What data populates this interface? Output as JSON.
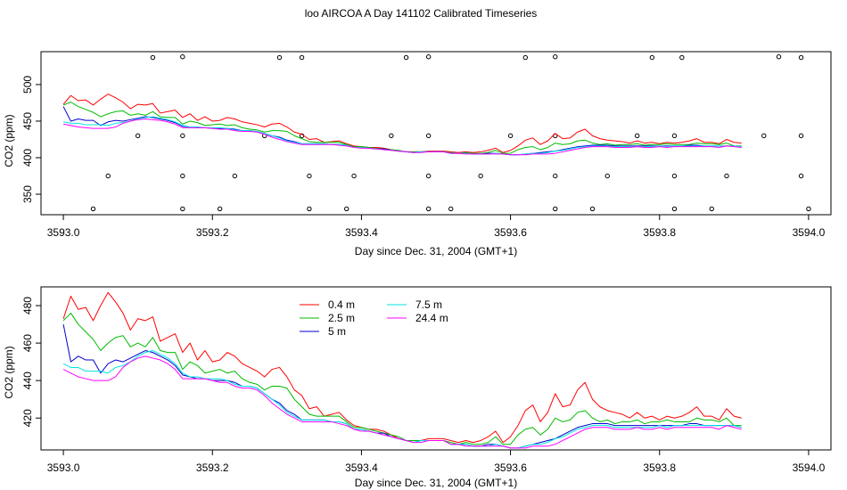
{
  "page_title": "loo AIRCOA A  Day 141102  Calibrated Timeseries",
  "colors": {
    "0.4 m": "#ff0000",
    "2.5 m": "#00bb00",
    "5 m": "#0000cc",
    "7.5 m": "#00e5e5",
    "24.4 m": "#ff00ff",
    "markers": "#000000"
  },
  "chart_data": [
    {
      "type": "line",
      "title": "",
      "xlabel": "Day since Dec. 31, 2004 (GMT+1)",
      "ylabel": "CO2 (ppm)",
      "xlim": [
        3592.97,
        3594.03
      ],
      "ylim": [
        322,
        545
      ],
      "x_ticks": [
        3593.0,
        3593.2,
        3593.4,
        3593.6,
        3593.8,
        3594.0
      ],
      "x_tick_labels": [
        "3593.0",
        "3593.2",
        "3593.4",
        "3593.6",
        "3593.8",
        "3594.0"
      ],
      "y_ticks": [
        350,
        400,
        450,
        500
      ],
      "y_tick_labels": [
        "350",
        "400",
        "450",
        "500"
      ],
      "legend": "none",
      "series_source": "shared",
      "markers": {
        "style": "open-circle",
        "points": [
          [
            3593.12,
            537
          ],
          [
            3593.16,
            538
          ],
          [
            3593.29,
            537
          ],
          [
            3593.32,
            537
          ],
          [
            3593.46,
            537
          ],
          [
            3593.49,
            538
          ],
          [
            3593.62,
            537
          ],
          [
            3593.66,
            538
          ],
          [
            3593.79,
            537
          ],
          [
            3593.83,
            537
          ],
          [
            3593.96,
            538
          ],
          [
            3593.99,
            537
          ],
          [
            3593.1,
            430
          ],
          [
            3593.16,
            430
          ],
          [
            3593.27,
            430
          ],
          [
            3593.32,
            430
          ],
          [
            3593.44,
            430
          ],
          [
            3593.49,
            430
          ],
          [
            3593.6,
            430
          ],
          [
            3593.66,
            430
          ],
          [
            3593.77,
            430
          ],
          [
            3593.82,
            430
          ],
          [
            3593.94,
            430
          ],
          [
            3593.99,
            430
          ],
          [
            3593.06,
            375
          ],
          [
            3593.16,
            375
          ],
          [
            3593.23,
            375
          ],
          [
            3593.33,
            375
          ],
          [
            3593.39,
            375
          ],
          [
            3593.49,
            375
          ],
          [
            3593.56,
            375
          ],
          [
            3593.66,
            375
          ],
          [
            3593.73,
            375
          ],
          [
            3593.82,
            375
          ],
          [
            3593.89,
            375
          ],
          [
            3593.99,
            375
          ],
          [
            3593.04,
            330
          ],
          [
            3593.16,
            330
          ],
          [
            3593.21,
            330
          ],
          [
            3593.33,
            330
          ],
          [
            3593.38,
            330
          ],
          [
            3593.49,
            330
          ],
          [
            3593.52,
            330
          ],
          [
            3593.66,
            330
          ],
          [
            3593.71,
            330
          ],
          [
            3593.82,
            330
          ],
          [
            3593.87,
            330
          ],
          [
            3594.0,
            330
          ]
        ]
      }
    },
    {
      "type": "line",
      "title": "",
      "xlabel": "Day since Dec. 31, 2004 (GMT+1)",
      "ylabel": "CO2 (ppm)",
      "xlim": [
        3592.97,
        3594.03
      ],
      "ylim": [
        403,
        490
      ],
      "x_ticks": [
        3593.0,
        3593.2,
        3593.4,
        3593.6,
        3593.8,
        3594.0
      ],
      "x_tick_labels": [
        "3593.0",
        "3593.2",
        "3593.4",
        "3593.6",
        "3593.8",
        "3594.0"
      ],
      "y_ticks": [
        420,
        440,
        460,
        480
      ],
      "y_tick_labels": [
        "420",
        "440",
        "460",
        "480"
      ],
      "legend": "top-left-center",
      "legend_columns": [
        [
          "0.4 m",
          "2.5 m",
          "5 m"
        ],
        [
          "7.5 m",
          "24.4 m"
        ]
      ],
      "series_source": "shared"
    }
  ],
  "series": [
    {
      "name": "0.4 m",
      "x_start": 3593.0,
      "x_step": 0.01,
      "values": [
        473,
        485,
        478,
        479,
        472,
        480,
        487,
        482,
        476,
        467,
        473,
        472,
        474,
        461,
        463,
        465,
        455,
        460,
        451,
        456,
        450,
        451,
        455,
        453,
        449,
        447,
        445,
        442,
        446,
        447,
        442,
        435,
        432,
        425,
        426,
        421,
        422,
        423,
        419,
        416,
        415,
        414,
        414,
        413,
        411,
        409,
        408,
        408,
        408,
        409,
        409,
        409,
        408,
        407,
        408,
        407,
        408,
        410,
        413,
        407,
        410,
        416,
        424,
        427,
        418,
        423,
        433,
        426,
        427,
        435,
        439,
        430,
        426,
        424,
        423,
        422,
        420,
        423,
        420,
        421,
        419,
        421,
        420,
        421,
        423,
        426,
        421,
        421,
        419,
        425,
        421,
        420
      ]
    },
    {
      "name": "2.5 m",
      "x_start": 3593.0,
      "x_step": 0.01,
      "values": [
        472,
        476,
        470,
        466,
        462,
        456,
        460,
        463,
        464,
        458,
        460,
        458,
        463,
        456,
        455,
        455,
        446,
        450,
        448,
        444,
        445,
        446,
        444,
        445,
        441,
        439,
        438,
        435,
        437,
        437,
        436,
        430,
        426,
        422,
        421,
        421,
        421,
        421,
        418,
        415,
        415,
        414,
        413,
        412,
        411,
        410,
        408,
        408,
        408,
        408,
        408,
        408,
        407,
        406,
        407,
        406,
        406,
        407,
        410,
        406,
        406,
        411,
        414,
        415,
        411,
        414,
        420,
        418,
        419,
        423,
        424,
        420,
        418,
        419,
        417,
        418,
        418,
        419,
        417,
        418,
        418,
        419,
        418,
        418,
        418,
        420,
        419,
        419,
        418,
        420,
        416,
        416
      ]
    },
    {
      "name": "5 m",
      "x_start": 3593.0,
      "x_step": 0.01,
      "values": [
        470,
        450,
        453,
        451,
        451,
        444,
        449,
        451,
        450,
        452,
        454,
        456,
        455,
        453,
        451,
        448,
        443,
        442,
        441,
        441,
        440,
        440,
        440,
        439,
        437,
        437,
        436,
        433,
        430,
        428,
        424,
        422,
        419,
        419,
        419,
        419,
        418,
        418,
        417,
        414,
        414,
        413,
        412,
        412,
        410,
        409,
        408,
        407,
        408,
        408,
        408,
        408,
        406,
        406,
        406,
        405,
        405,
        406,
        406,
        405,
        404,
        404,
        405,
        406,
        407,
        408,
        409,
        411,
        413,
        415,
        416,
        417,
        417,
        417,
        416,
        416,
        416,
        416,
        416,
        416,
        416,
        416,
        416,
        416,
        417,
        417,
        416,
        416,
        416,
        416,
        416,
        415
      ]
    },
    {
      "name": "7.5 m",
      "x_start": 3593.0,
      "x_step": 0.01,
      "values": [
        449,
        447,
        447,
        445,
        445,
        445,
        444,
        447,
        448,
        450,
        453,
        455,
        456,
        454,
        452,
        449,
        444,
        442,
        442,
        441,
        441,
        441,
        440,
        438,
        437,
        437,
        436,
        433,
        430,
        427,
        423,
        421,
        419,
        419,
        419,
        419,
        418,
        418,
        417,
        414,
        414,
        413,
        412,
        411,
        410,
        409,
        408,
        407,
        408,
        408,
        408,
        408,
        406,
        406,
        406,
        405,
        405,
        405,
        406,
        405,
        404,
        404,
        405,
        406,
        406,
        407,
        409,
        410,
        412,
        414,
        415,
        416,
        416,
        416,
        415,
        415,
        415,
        415,
        415,
        415,
        416,
        415,
        416,
        416,
        416,
        416,
        416,
        416,
        416,
        416,
        416,
        415
      ]
    },
    {
      "name": "24.4 m",
      "x_start": 3593.0,
      "x_step": 0.01,
      "values": [
        446,
        444,
        442,
        441,
        440,
        440,
        440,
        442,
        447,
        450,
        452,
        453,
        452,
        451,
        449,
        446,
        441,
        441,
        441,
        441,
        440,
        439,
        439,
        437,
        436,
        436,
        435,
        432,
        428,
        425,
        422,
        420,
        418,
        418,
        418,
        418,
        418,
        417,
        416,
        414,
        413,
        413,
        412,
        411,
        410,
        409,
        408,
        407,
        407,
        408,
        408,
        408,
        406,
        406,
        405,
        405,
        405,
        405,
        405,
        405,
        404,
        404,
        404,
        405,
        405,
        405,
        406,
        408,
        410,
        412,
        414,
        415,
        415,
        415,
        414,
        414,
        414,
        415,
        414,
        414,
        415,
        414,
        415,
        415,
        415,
        415,
        415,
        415,
        414,
        416,
        415,
        414
      ]
    }
  ]
}
